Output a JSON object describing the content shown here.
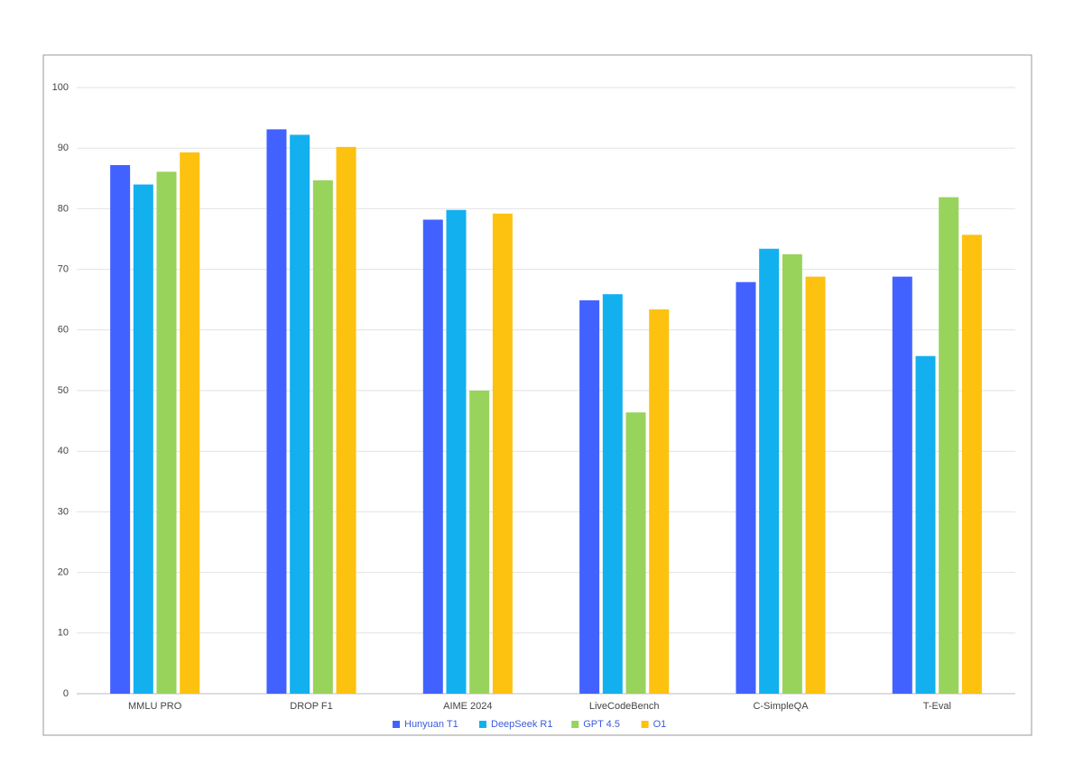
{
  "chart_data": {
    "type": "bar",
    "categories": [
      "MMLU PRO",
      "DROP F1",
      "AIME 2024",
      "LiveCodeBench",
      "C-SimpleQA",
      "T-Eval"
    ],
    "series": [
      {
        "name": "Hunyuan T1",
        "color": "#4262ff",
        "values": [
          87.2,
          93.1,
          78.2,
          64.9,
          67.9,
          68.8
        ]
      },
      {
        "name": "DeepSeek R1",
        "color": "#13b0ef",
        "values": [
          84.0,
          92.2,
          79.8,
          65.9,
          73.4,
          55.7
        ]
      },
      {
        "name": "GPT 4.5",
        "color": "#98d35c",
        "values": [
          86.1,
          84.7,
          50.0,
          46.4,
          72.5,
          81.9
        ]
      },
      {
        "name": "O1",
        "color": "#fdc10f",
        "values": [
          89.3,
          90.2,
          79.2,
          63.4,
          68.8,
          75.7
        ]
      }
    ],
    "ylim": [
      0,
      100
    ],
    "yticks": [
      0,
      10,
      20,
      30,
      40,
      50,
      60,
      70,
      80,
      90,
      100
    ],
    "grid": true,
    "legend": "bottom"
  }
}
